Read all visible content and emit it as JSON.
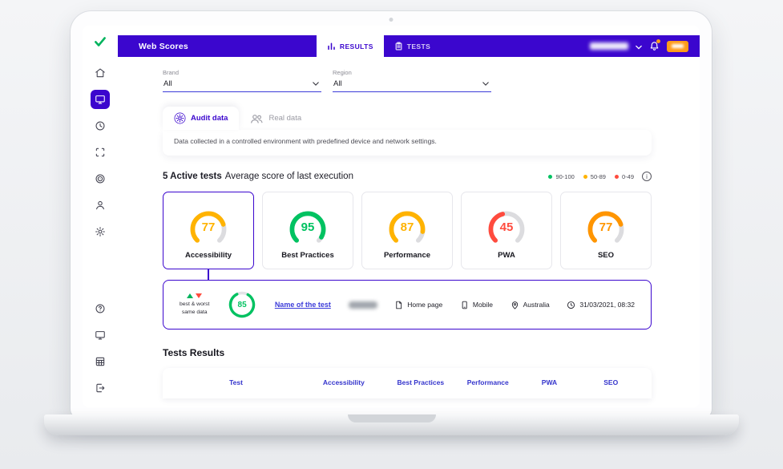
{
  "colors": {
    "accent": "#3b06ce",
    "green": "#00c261",
    "yellow": "#ffb300",
    "orange": "#ff9500",
    "red": "#ff4b3e"
  },
  "topbar": {
    "title": "Web Scores",
    "tabs": [
      {
        "label": "RESULTS",
        "active": true
      },
      {
        "label": "TESTS",
        "active": false
      }
    ]
  },
  "filters": {
    "brand_label": "Brand",
    "brand_value": "All",
    "region_label": "Region",
    "region_value": "All"
  },
  "data_tabs": {
    "audit": "Audit data",
    "real": "Real data",
    "description": "Data collected in a controlled environment with predefined device and network settings."
  },
  "section": {
    "title_bold": "5 Active tests",
    "title_rest": "Average score of last execution",
    "legend": [
      {
        "label": "90-100",
        "color": "#00c261"
      },
      {
        "label": "50-89",
        "color": "#ffb300"
      },
      {
        "label": "0-49",
        "color": "#ff4b3e"
      }
    ]
  },
  "chart_data": {
    "type": "gauge",
    "title": "Average score of last execution",
    "range": [
      0,
      100
    ],
    "gauges": [
      {
        "label": "Accessibility",
        "value": 77,
        "color": "#ffb300",
        "selected": true
      },
      {
        "label": "Best Practices",
        "value": 95,
        "color": "#00c261",
        "selected": false
      },
      {
        "label": "Performance",
        "value": 87,
        "color": "#ffb300",
        "selected": false
      },
      {
        "label": "PWA",
        "value": 45,
        "color": "#ff4b3e",
        "selected": false
      },
      {
        "label": "SEO",
        "value": 77,
        "color": "#ff9500",
        "selected": false
      }
    ]
  },
  "detail": {
    "best_worst_line1": "best & worst",
    "best_worst_line2": "same data",
    "score": 85,
    "score_color": "#00c261",
    "test_link": "Name of the test",
    "page": "Home page",
    "device": "Mobile",
    "location": "Australia",
    "timestamp": "31/03/2021, 08:32"
  },
  "results": {
    "title": "Tests Results",
    "columns": [
      "Test",
      "Accessibility",
      "Best Practices",
      "Performance",
      "PWA",
      "SEO"
    ]
  }
}
